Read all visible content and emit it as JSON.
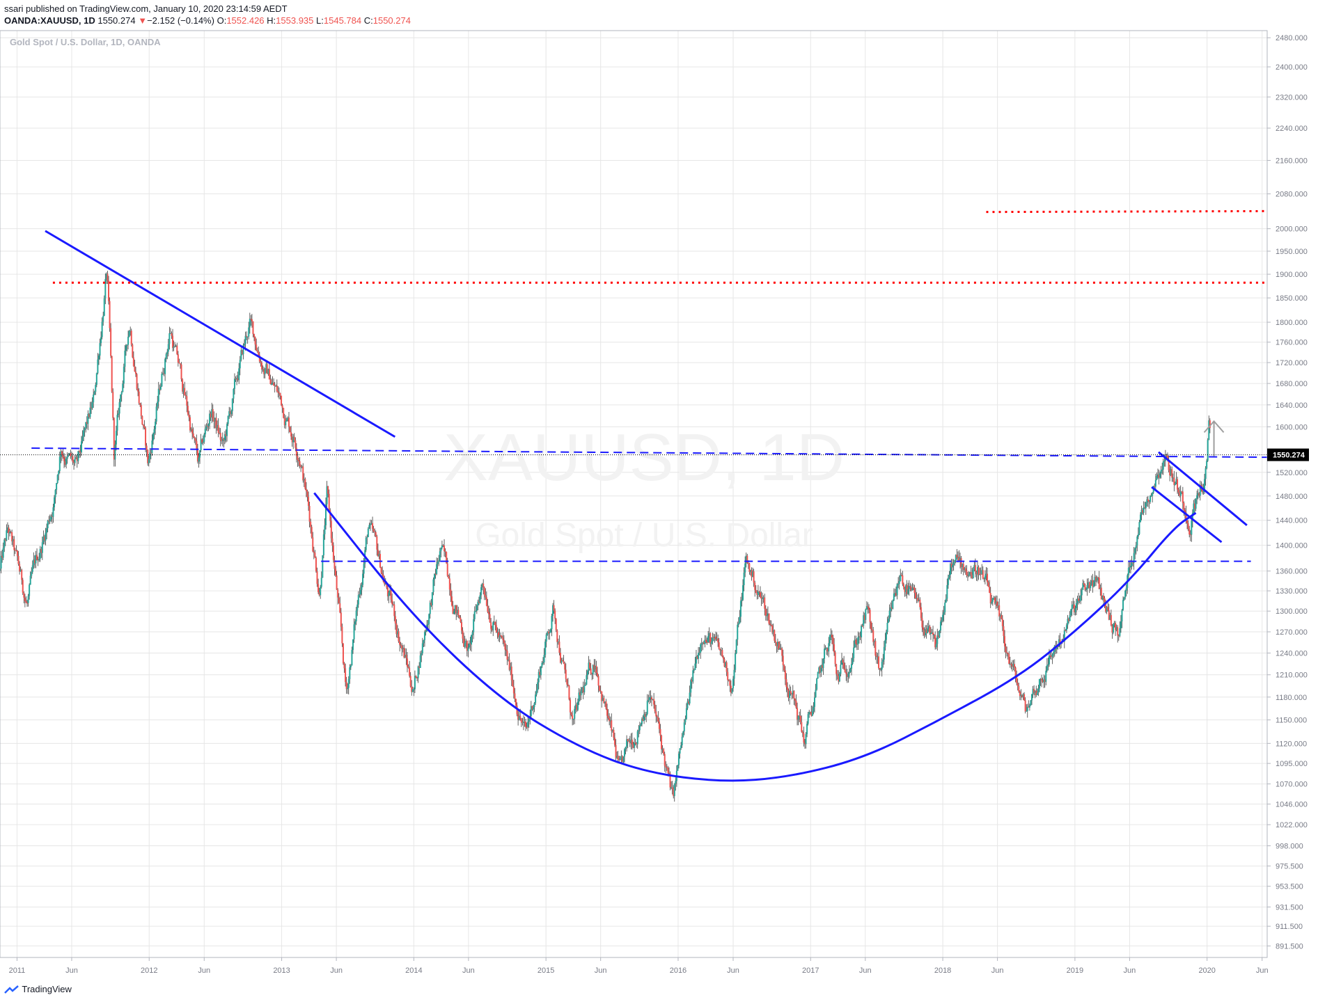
{
  "header": {
    "published": "ssari published on TradingView.com, January 10, 2020 23:14:59 AEDT",
    "symbol": "OANDA:XAUUSD, 1D",
    "last": "1550.274",
    "change_arrow": "▼",
    "change": "−2.152 (−0.14%)",
    "o_label": "O:",
    "o": "1552.426",
    "h_label": "H:",
    "h": "1553.935",
    "l_label": "L:",
    "l": "1545.784",
    "c_label": "C:",
    "c": "1550.274"
  },
  "footer": {
    "brand": "TradingView",
    "logo_icon": "tradingview-logo-icon"
  },
  "colors": {
    "up": "#26a69a",
    "down": "#ef5350",
    "trendline": "#1a1aff",
    "resistance": "#ff0000",
    "axis_text": "#787b86",
    "grid": "#e6e6e6"
  },
  "chart_data": {
    "type": "candlestick",
    "title": "Gold Spot / U.S. Dollar, 1D, OANDA",
    "watermark_symbol": "XAUUSD, 1D",
    "watermark_name": "Gold Spot / U.S. Dollar",
    "ylim": [
      880,
      2500
    ],
    "y_scale": "log",
    "x_range": [
      "2010-11-15",
      "2020-06-15"
    ],
    "last_price": 1550.274,
    "last_price_label": "1550.274",
    "y_ticks": [
      {
        "v": 891.5,
        "t": "891.500"
      },
      {
        "v": 911.5,
        "t": "911.500"
      },
      {
        "v": 931.5,
        "t": "931.500"
      },
      {
        "v": 953.5,
        "t": "953.500"
      },
      {
        "v": 975.5,
        "t": "975.500"
      },
      {
        "v": 998,
        "t": "998.000"
      },
      {
        "v": 1022,
        "t": "1022.000"
      },
      {
        "v": 1046,
        "t": "1046.000"
      },
      {
        "v": 1070,
        "t": "1070.000"
      },
      {
        "v": 1095,
        "t": "1095.000"
      },
      {
        "v": 1120,
        "t": "1120.000"
      },
      {
        "v": 1150,
        "t": "1150.000"
      },
      {
        "v": 1180,
        "t": "1180.000"
      },
      {
        "v": 1210,
        "t": "1210.000"
      },
      {
        "v": 1240,
        "t": "1240.000"
      },
      {
        "v": 1270,
        "t": "1270.000"
      },
      {
        "v": 1300,
        "t": "1300.000"
      },
      {
        "v": 1330,
        "t": "1330.000"
      },
      {
        "v": 1360,
        "t": "1360.000"
      },
      {
        "v": 1400,
        "t": "1400.000"
      },
      {
        "v": 1440,
        "t": "1440.000"
      },
      {
        "v": 1480,
        "t": "1480.000"
      },
      {
        "v": 1520,
        "t": "1520.000"
      },
      {
        "v": 1600,
        "t": "1600.000"
      },
      {
        "v": 1640,
        "t": "1640.000"
      },
      {
        "v": 1680,
        "t": "1680.000"
      },
      {
        "v": 1720,
        "t": "1720.000"
      },
      {
        "v": 1760,
        "t": "1760.000"
      },
      {
        "v": 1800,
        "t": "1800.000"
      },
      {
        "v": 1850,
        "t": "1850.000"
      },
      {
        "v": 1900,
        "t": "1900.000"
      },
      {
        "v": 1950,
        "t": "1950.000"
      },
      {
        "v": 2000,
        "t": "2000.000"
      },
      {
        "v": 2080,
        "t": "2080.000"
      },
      {
        "v": 2160,
        "t": "2160.000"
      },
      {
        "v": 2240,
        "t": "2240.000"
      },
      {
        "v": 2320,
        "t": "2320.000"
      },
      {
        "v": 2400,
        "t": "2400.000"
      },
      {
        "v": 2480,
        "t": "2480.000"
      }
    ],
    "x_ticks": [
      {
        "d": "2011-01-01",
        "t": "2011"
      },
      {
        "d": "2011-06-01",
        "t": "Jun"
      },
      {
        "d": "2012-01-01",
        "t": "2012"
      },
      {
        "d": "2012-06-01",
        "t": "Jun"
      },
      {
        "d": "2013-01-01",
        "t": "2013"
      },
      {
        "d": "2013-06-01",
        "t": "Jun"
      },
      {
        "d": "2014-01-01",
        "t": "2014"
      },
      {
        "d": "2014-06-01",
        "t": "Jun"
      },
      {
        "d": "2015-01-01",
        "t": "2015"
      },
      {
        "d": "2015-06-01",
        "t": "Jun"
      },
      {
        "d": "2016-01-01",
        "t": "2016"
      },
      {
        "d": "2016-06-01",
        "t": "Jun"
      },
      {
        "d": "2017-01-01",
        "t": "2017"
      },
      {
        "d": "2017-06-01",
        "t": "Jun"
      },
      {
        "d": "2018-01-01",
        "t": "2018"
      },
      {
        "d": "2018-06-01",
        "t": "Jun"
      },
      {
        "d": "2019-01-01",
        "t": "2019"
      },
      {
        "d": "2019-06-01",
        "t": "Jun"
      },
      {
        "d": "2020-01-01",
        "t": "2020"
      },
      {
        "d": "2020-06-01",
        "t": "Jun"
      }
    ],
    "price_path": [
      [
        "2010-11-15",
        1360
      ],
      [
        "2010-12-07",
        1420
      ],
      [
        "2011-01-28",
        1310
      ],
      [
        "2011-04-15",
        1480
      ],
      [
        "2011-05-02",
        1570
      ],
      [
        "2011-06-15",
        1520
      ],
      [
        "2011-08-01",
        1640
      ],
      [
        "2011-09-06",
        1910
      ],
      [
        "2011-09-26",
        1540
      ],
      [
        "2011-11-08",
        1800
      ],
      [
        "2011-12-29",
        1530
      ],
      [
        "2012-02-28",
        1790
      ],
      [
        "2012-05-16",
        1530
      ],
      [
        "2012-06-20",
        1630
      ],
      [
        "2012-07-24",
        1560
      ],
      [
        "2012-10-04",
        1795
      ],
      [
        "2012-11-16",
        1710
      ],
      [
        "2012-12-28",
        1650
      ],
      [
        "2013-02-20",
        1560
      ],
      [
        "2013-04-15",
        1335
      ],
      [
        "2013-05-06",
        1480
      ],
      [
        "2013-06-28",
        1180
      ],
      [
        "2013-08-28",
        1430
      ],
      [
        "2013-12-31",
        1190
      ],
      [
        "2014-03-17",
        1392
      ],
      [
        "2014-06-02",
        1240
      ],
      [
        "2014-07-10",
        1345
      ],
      [
        "2014-11-07",
        1130
      ],
      [
        "2015-01-22",
        1305
      ],
      [
        "2015-03-17",
        1142
      ],
      [
        "2015-05-18",
        1232
      ],
      [
        "2015-07-24",
        1077
      ],
      [
        "2015-10-14",
        1190
      ],
      [
        "2015-12-17",
        1047
      ],
      [
        "2016-03-10",
        1280
      ],
      [
        "2016-05-30",
        1200
      ],
      [
        "2016-07-06",
        1375
      ],
      [
        "2016-10-07",
        1250
      ],
      [
        "2016-12-15",
        1123
      ],
      [
        "2017-02-27",
        1265
      ],
      [
        "2017-03-14",
        1196
      ],
      [
        "2017-06-06",
        1297
      ],
      [
        "2017-07-10",
        1205
      ],
      [
        "2017-09-08",
        1357
      ],
      [
        "2017-12-12",
        1236
      ],
      [
        "2018-01-25",
        1366
      ],
      [
        "2018-04-11",
        1365
      ],
      [
        "2018-08-16",
        1160
      ],
      [
        "2018-10-30",
        1240
      ],
      [
        "2019-02-20",
        1346
      ],
      [
        "2019-05-02",
        1266
      ],
      [
        "2019-06-25",
        1439
      ],
      [
        "2019-09-04",
        1557
      ],
      [
        "2019-11-12",
        1446
      ],
      [
        "2019-12-31",
        1523
      ],
      [
        "2020-01-08",
        1610
      ],
      [
        "2020-01-10",
        1550
      ]
    ],
    "annotations": {
      "descending_trendline": [
        [
          "2011-03-20",
          1995
        ],
        [
          "2013-11-10",
          1582
        ]
      ],
      "support_dashed_1550": [
        [
          "2011-02-10",
          1562
        ],
        [
          "2020-06-15",
          1546
        ]
      ],
      "support_dashed_1375": [
        [
          "2013-04-20",
          1375
        ],
        [
          "2020-05-01",
          1375
        ]
      ],
      "resistance_dotted_1880": [
        [
          "2011-04-10",
          1882
        ],
        [
          "2020-06-15",
          1882
        ]
      ],
      "resistance_dotted_2040": [
        [
          "2018-05-01",
          2038
        ],
        [
          "2020-06-15",
          2040
        ]
      ],
      "cup_curve": [
        [
          "2013-04-01",
          1485
        ],
        [
          "2014-01-01",
          1290
        ],
        [
          "2014-09-01",
          1175
        ],
        [
          "2015-04-01",
          1115
        ],
        [
          "2015-10-01",
          1084
        ],
        [
          "2016-05-01",
          1072
        ],
        [
          "2016-11-01",
          1078
        ],
        [
          "2017-06-01",
          1102
        ],
        [
          "2018-01-01",
          1152
        ],
        [
          "2018-08-01",
          1208
        ],
        [
          "2019-01-01",
          1270
        ],
        [
          "2019-06-01",
          1345
        ],
        [
          "2019-10-01",
          1428
        ],
        [
          "2019-12-01",
          1452
        ]
      ],
      "flag_upper": [
        [
          "2019-08-20",
          1555
        ],
        [
          "2020-04-20",
          1432
        ]
      ],
      "flag_lower": [
        [
          "2019-08-01",
          1495
        ],
        [
          "2020-02-10",
          1405
        ]
      ],
      "arrow_up": [
        [
          "2020-01-20",
          1548
        ],
        [
          "2020-01-20",
          1610
        ]
      ]
    }
  }
}
